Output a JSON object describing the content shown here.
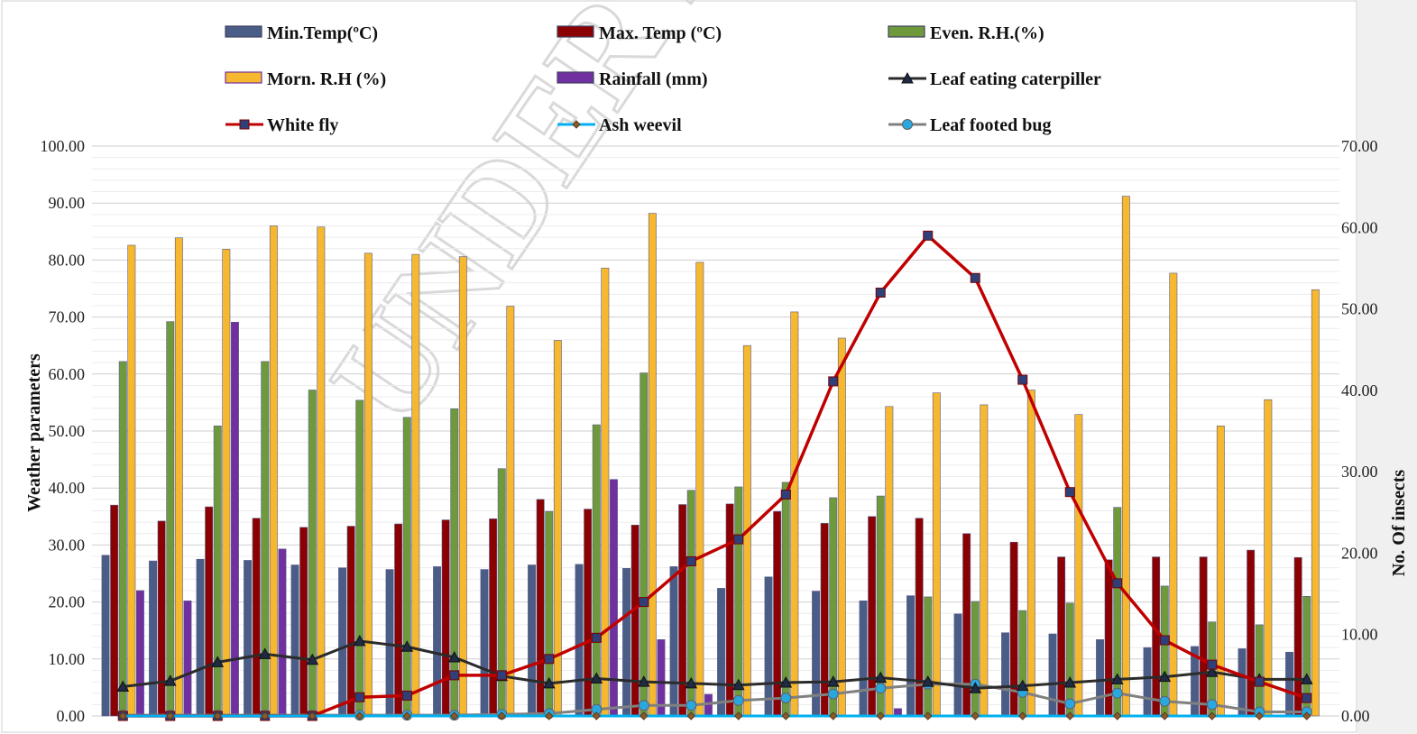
{
  "chart_data": {
    "type": "bar",
    "title": "",
    "ylabel": "Weather parameters",
    "y2label": "No. Of insects",
    "ylim": [
      0,
      100
    ],
    "y2lim": [
      0,
      70
    ],
    "yticks": [
      "0.00",
      "10.00",
      "20.00",
      "30.00",
      "40.00",
      "50.00",
      "60.00",
      "70.00",
      "80.00",
      "90.00",
      "100.00"
    ],
    "y2ticks": [
      "0.00",
      "10.00",
      "20.00",
      "30.00",
      "40.00",
      "50.00",
      "60.00",
      "70.00"
    ],
    "grid": true,
    "legend_position": "top",
    "watermark": "UNDER PEER REVIEW",
    "num_categories": 26,
    "bar_series": [
      {
        "name": "Min.Temp(ºC)",
        "color": "#4a5d86",
        "values": [
          28.2,
          27.2,
          27.5,
          27.3,
          26.5,
          26.0,
          25.7,
          26.2,
          25.7,
          26.5,
          26.6,
          25.9,
          26.2,
          22.4,
          24.4,
          21.9,
          20.2,
          21.1,
          17.9,
          14.6,
          14.4,
          13.4,
          12.0,
          12.2,
          11.8,
          11.2
        ]
      },
      {
        "name": "Max. Temp (ºC)",
        "color": "#8b0000",
        "values": [
          37.0,
          34.2,
          36.7,
          34.7,
          33.1,
          33.3,
          33.7,
          34.4,
          34.6,
          38.0,
          36.3,
          33.5,
          37.1,
          37.2,
          35.9,
          33.8,
          35.0,
          34.7,
          32.0,
          30.5,
          27.9,
          27.4,
          27.9,
          27.9,
          29.1,
          27.8
        ]
      },
      {
        "name": "Even. R.H.(%)",
        "color": "#6e9a3c",
        "values": [
          62.2,
          69.2,
          50.9,
          62.2,
          57.2,
          55.4,
          52.4,
          53.9,
          43.4,
          35.9,
          51.1,
          60.2,
          39.6,
          40.2,
          41.0,
          38.3,
          38.6,
          20.9,
          20.1,
          18.5,
          19.8,
          36.6,
          22.8,
          16.5,
          16.0,
          21.0
        ]
      },
      {
        "name": "Morn. R.H (%)",
        "color": "#f5b82e",
        "values": [
          82.6,
          83.9,
          81.9,
          86.0,
          85.8,
          81.2,
          81.0,
          80.6,
          71.9,
          65.9,
          78.6,
          88.2,
          79.6,
          65.0,
          70.9,
          66.3,
          54.3,
          56.7,
          54.6,
          57.2,
          52.9,
          91.2,
          77.7,
          50.9,
          55.5,
          74.8
        ]
      },
      {
        "name": "Rainfall (mm)",
        "color": "#7030a0",
        "values": [
          22.0,
          20.2,
          69.1,
          29.3,
          0,
          0,
          0,
          0,
          0,
          0,
          41.5,
          13.4,
          3.8,
          0,
          0,
          0,
          1.3,
          0,
          0,
          0,
          0,
          0,
          0,
          0,
          0,
          0
        ]
      }
    ],
    "line_series": [
      {
        "name": "Leaf eating caterpiller",
        "color": "#2b2b2b",
        "marker": "triangle",
        "values": [
          3.6,
          4.3,
          6.6,
          7.6,
          6.9,
          9.2,
          8.5,
          7.2,
          4.9,
          4.0,
          4.6,
          4.2,
          4.0,
          3.8,
          4.1,
          4.2,
          4.7,
          4.2,
          3.4,
          3.7,
          4.1,
          4.5,
          4.8,
          5.4,
          4.5,
          4.5
        ]
      },
      {
        "name": "White fly",
        "color": "#c00000",
        "marker": "square",
        "values": [
          0,
          0,
          0,
          0,
          0,
          2.3,
          2.5,
          5.0,
          5.0,
          7.0,
          9.6,
          14.0,
          19.0,
          21.7,
          27.2,
          41.1,
          52.0,
          59.0,
          53.8,
          41.3,
          27.5,
          16.3,
          9.3,
          6.3,
          4.2,
          2.2
        ]
      },
      {
        "name": "Ash weevil",
        "color": "#00b0f0",
        "marker": "diamond",
        "values": [
          0,
          0,
          0,
          0,
          0,
          0,
          0,
          0,
          0,
          0,
          0,
          0,
          0,
          0,
          0,
          0,
          0,
          0,
          0,
          0,
          0,
          0,
          0,
          0,
          0,
          0
        ]
      },
      {
        "name": "Leaf footed bug",
        "color": "#808080",
        "marker": "circle",
        "values": [
          0.1,
          0.1,
          0.1,
          0.1,
          0.1,
          0.1,
          0.1,
          0.1,
          0.2,
          0.3,
          0.8,
          1.3,
          1.3,
          1.9,
          2.2,
          2.7,
          3.4,
          3.9,
          3.9,
          2.9,
          1.5,
          2.8,
          1.8,
          1.4,
          0.5,
          0.5
        ]
      }
    ]
  }
}
